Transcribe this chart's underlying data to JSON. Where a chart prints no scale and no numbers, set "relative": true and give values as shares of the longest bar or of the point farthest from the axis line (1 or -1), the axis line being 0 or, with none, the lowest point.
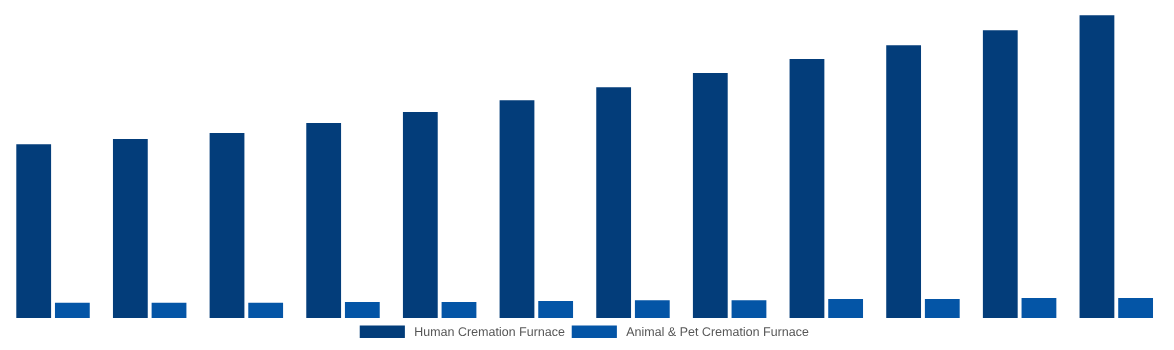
{
  "chart_data": {
    "type": "bar",
    "relative": true,
    "categories": [
      null,
      null,
      null,
      null,
      null,
      null,
      null,
      null,
      null,
      null,
      null,
      null
    ],
    "series": [
      {
        "name": "Human Cremation Furnace",
        "color": "#033d7a",
        "values": [
          0.574,
          0.591,
          0.611,
          0.644,
          0.68,
          0.719,
          0.762,
          0.809,
          0.855,
          0.901,
          0.95,
          1
        ]
      },
      {
        "name": "Animal & Pet Cremation Furnace",
        "color": "#0455a6",
        "values": [
          0.05,
          0.05,
          0.05,
          0.053,
          0.053,
          0.056,
          0.059,
          0.059,
          0.063,
          0.063,
          0.066,
          0.066
        ]
      }
    ],
    "legend": "bottom",
    "grid": false
  }
}
